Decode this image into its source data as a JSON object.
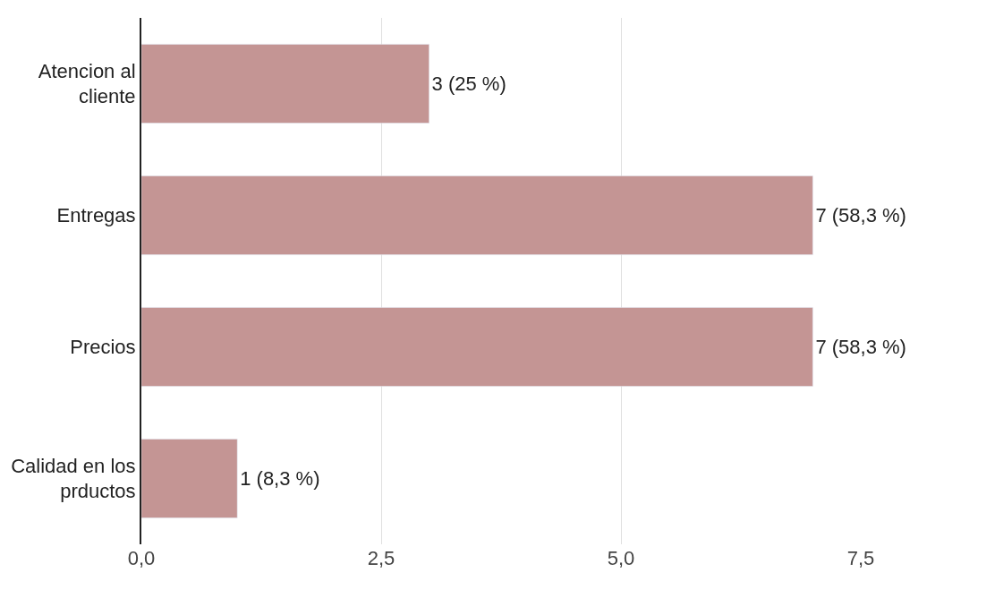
{
  "chart_data": {
    "type": "bar",
    "orientation": "horizontal",
    "categories": [
      "Atencion al cliente",
      "Entregas",
      "Precios",
      "Calidad en los prductos"
    ],
    "values": [
      3,
      7,
      7,
      1
    ],
    "value_labels": [
      "3 (25 %)",
      "7 (58,3 %)",
      "7 (58,3 %)",
      "1 (8,3 %)"
    ],
    "color": "#c49594",
    "xlim": [
      0,
      7.5
    ],
    "xticks": [
      {
        "value": 0,
        "label": "0,0"
      },
      {
        "value": 2.5,
        "label": "2,5"
      },
      {
        "value": 5,
        "label": "5,0"
      },
      {
        "value": 7.5,
        "label": "7,5"
      }
    ],
    "grid": "x"
  }
}
